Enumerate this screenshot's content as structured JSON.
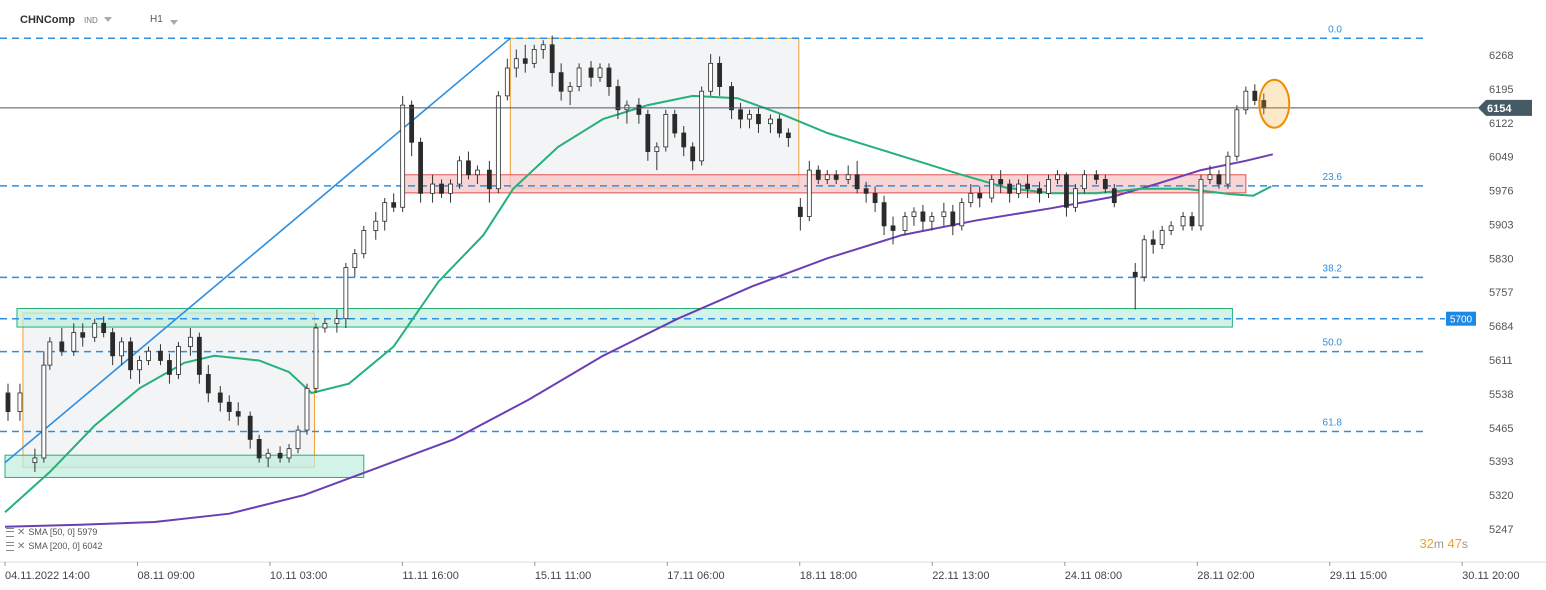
{
  "header": {
    "symbol": "CHNComp",
    "type_badge": "IND",
    "timeframe": "H1"
  },
  "legend": [
    {
      "label": "SMA [50, 0] 5979",
      "color": "#26b07a"
    },
    {
      "label": "SMA [200, 0] 6042",
      "color": "#6a3fb5"
    }
  ],
  "timer": {
    "minutes": "32",
    "m": "m",
    "seconds": "47",
    "s": "s"
  },
  "chart_data": {
    "type": "candlestick",
    "title": "",
    "ylim": [
      5210,
      6340
    ],
    "y_ticks": [
      6268,
      6195,
      6122,
      6049,
      5976,
      5903,
      5830,
      5757,
      5684,
      5611,
      5538,
      5465,
      5393,
      5320,
      5247
    ],
    "x_ticks": [
      {
        "label": "04.11.2022 14:00",
        "t": 0
      },
      {
        "label": "08.11 09:00",
        "t": 0.0886
      },
      {
        "label": "10.11 03:00",
        "t": 0.1772
      },
      {
        "label": "11.11 16:00",
        "t": 0.2658
      },
      {
        "label": "15.11 11:00",
        "t": 0.3544
      },
      {
        "label": "17.11 06:00",
        "t": 0.443
      },
      {
        "label": "18.11 18:00",
        "t": 0.5316
      },
      {
        "label": "22.11 13:00",
        "t": 0.6202
      },
      {
        "label": "24.11 08:00",
        "t": 0.7089
      },
      {
        "label": "28.11 02:00",
        "t": 0.7975
      },
      {
        "label": "29.11 15:00",
        "t": 0.8861
      },
      {
        "label": "30.11 20:00",
        "t": 0.9747
      }
    ],
    "current_price": 6154,
    "fib_levels": [
      {
        "label": "0.0",
        "price": 6304
      },
      {
        "label": "23.6",
        "price": 5986
      },
      {
        "label": "38.2",
        "price": 5789
      },
      {
        "label": "50.0",
        "price": 5629
      },
      {
        "label": "61.8",
        "price": 5457
      }
    ],
    "horizontal_level": {
      "label": "5700",
      "price": 5700
    },
    "zones": [
      {
        "name": "support-zone-low",
        "t0": 0.0,
        "t1": 0.24,
        "p0": 5358,
        "p1": 5406,
        "color": "#26b07a"
      },
      {
        "name": "support-zone-5700",
        "t0": 0.008,
        "t1": 0.821,
        "p0": 5682,
        "p1": 5722,
        "color": "#26b07a"
      },
      {
        "name": "resistance-zone",
        "t0": 0.265,
        "t1": 0.83,
        "p0": 5971,
        "p1": 6010,
        "color": "#e05050"
      }
    ],
    "consolidation_boxes": [
      {
        "name": "consolidation-box-1",
        "t0": 0.012,
        "t1": 0.207,
        "p0": 5380,
        "p1": 5712
      },
      {
        "name": "consolidation-box-2",
        "t0": 0.338,
        "t1": 0.531,
        "p0": 5981,
        "p1": 6304
      }
    ],
    "trendline": {
      "t0": 0.0,
      "p0": 5390,
      "t1": 0.338,
      "p1": 6304
    },
    "highlight_circle": {
      "t": 0.849,
      "p": 6163
    },
    "sma50": [
      [
        0.0,
        5283
      ],
      [
        0.03,
        5370
      ],
      [
        0.06,
        5470
      ],
      [
        0.09,
        5550
      ],
      [
        0.12,
        5605
      ],
      [
        0.14,
        5620
      ],
      [
        0.17,
        5610
      ],
      [
        0.19,
        5585
      ],
      [
        0.205,
        5540
      ],
      [
        0.23,
        5560
      ],
      [
        0.26,
        5640
      ],
      [
        0.29,
        5780
      ],
      [
        0.32,
        5880
      ],
      [
        0.34,
        5980
      ],
      [
        0.37,
        6070
      ],
      [
        0.4,
        6130
      ],
      [
        0.43,
        6160
      ],
      [
        0.46,
        6180
      ],
      [
        0.49,
        6175
      ],
      [
        0.52,
        6140
      ],
      [
        0.55,
        6100
      ],
      [
        0.58,
        6070
      ],
      [
        0.61,
        6040
      ],
      [
        0.64,
        6010
      ],
      [
        0.67,
        5982
      ],
      [
        0.7,
        5970
      ],
      [
        0.73,
        5970
      ],
      [
        0.76,
        5980
      ],
      [
        0.79,
        5980
      ],
      [
        0.82,
        5968
      ],
      [
        0.835,
        5965
      ],
      [
        0.847,
        5985
      ]
    ],
    "sma200": [
      [
        0.0,
        5252
      ],
      [
        0.05,
        5256
      ],
      [
        0.1,
        5262
      ],
      [
        0.15,
        5280
      ],
      [
        0.2,
        5320
      ],
      [
        0.25,
        5380
      ],
      [
        0.3,
        5440
      ],
      [
        0.35,
        5525
      ],
      [
        0.4,
        5620
      ],
      [
        0.45,
        5700
      ],
      [
        0.5,
        5770
      ],
      [
        0.55,
        5830
      ],
      [
        0.6,
        5880
      ],
      [
        0.65,
        5912
      ],
      [
        0.7,
        5938
      ],
      [
        0.74,
        5962
      ],
      [
        0.77,
        5990
      ],
      [
        0.8,
        6020
      ],
      [
        0.83,
        6040
      ],
      [
        0.848,
        6054
      ]
    ],
    "candles": [
      {
        "t": 0.002,
        "o": 5540,
        "h": 5560,
        "l": 5480,
        "c": 5500
      },
      {
        "t": 0.01,
        "o": 5500,
        "h": 5560,
        "l": 5480,
        "c": 5540
      },
      {
        "t": 0.02,
        "o": 5390,
        "h": 5420,
        "l": 5370,
        "c": 5400
      },
      {
        "t": 0.026,
        "o": 5400,
        "h": 5630,
        "l": 5390,
        "c": 5600
      },
      {
        "t": 0.03,
        "o": 5600,
        "h": 5660,
        "l": 5590,
        "c": 5650
      },
      {
        "t": 0.038,
        "o": 5650,
        "h": 5680,
        "l": 5620,
        "c": 5630
      },
      {
        "t": 0.046,
        "o": 5630,
        "h": 5690,
        "l": 5620,
        "c": 5670
      },
      {
        "t": 0.052,
        "o": 5670,
        "h": 5690,
        "l": 5640,
        "c": 5660
      },
      {
        "t": 0.06,
        "o": 5660,
        "h": 5700,
        "l": 5650,
        "c": 5690
      },
      {
        "t": 0.066,
        "o": 5690,
        "h": 5705,
        "l": 5660,
        "c": 5670
      },
      {
        "t": 0.072,
        "o": 5670,
        "h": 5680,
        "l": 5600,
        "c": 5620
      },
      {
        "t": 0.078,
        "o": 5620,
        "h": 5660,
        "l": 5600,
        "c": 5650
      },
      {
        "t": 0.084,
        "o": 5650,
        "h": 5660,
        "l": 5570,
        "c": 5590
      },
      {
        "t": 0.09,
        "o": 5590,
        "h": 5620,
        "l": 5560,
        "c": 5610
      },
      {
        "t": 0.096,
        "o": 5610,
        "h": 5640,
        "l": 5600,
        "c": 5630
      },
      {
        "t": 0.104,
        "o": 5630,
        "h": 5645,
        "l": 5600,
        "c": 5610
      },
      {
        "t": 0.11,
        "o": 5610,
        "h": 5625,
        "l": 5560,
        "c": 5580
      },
      {
        "t": 0.116,
        "o": 5580,
        "h": 5650,
        "l": 5570,
        "c": 5640
      },
      {
        "t": 0.124,
        "o": 5640,
        "h": 5680,
        "l": 5620,
        "c": 5660
      },
      {
        "t": 0.13,
        "o": 5660,
        "h": 5670,
        "l": 5560,
        "c": 5580
      },
      {
        "t": 0.136,
        "o": 5580,
        "h": 5600,
        "l": 5520,
        "c": 5540
      },
      {
        "t": 0.144,
        "o": 5540,
        "h": 5555,
        "l": 5500,
        "c": 5520
      },
      {
        "t": 0.15,
        "o": 5520,
        "h": 5535,
        "l": 5480,
        "c": 5500
      },
      {
        "t": 0.156,
        "o": 5500,
        "h": 5520,
        "l": 5470,
        "c": 5490
      },
      {
        "t": 0.164,
        "o": 5490,
        "h": 5500,
        "l": 5420,
        "c": 5440
      },
      {
        "t": 0.17,
        "o": 5440,
        "h": 5450,
        "l": 5390,
        "c": 5400
      },
      {
        "t": 0.176,
        "o": 5400,
        "h": 5420,
        "l": 5380,
        "c": 5410
      },
      {
        "t": 0.184,
        "o": 5410,
        "h": 5425,
        "l": 5390,
        "c": 5400
      },
      {
        "t": 0.19,
        "o": 5400,
        "h": 5430,
        "l": 5390,
        "c": 5420
      },
      {
        "t": 0.196,
        "o": 5420,
        "h": 5470,
        "l": 5410,
        "c": 5460
      },
      {
        "t": 0.202,
        "o": 5460,
        "h": 5560,
        "l": 5450,
        "c": 5550
      },
      {
        "t": 0.208,
        "o": 5550,
        "h": 5690,
        "l": 5540,
        "c": 5680
      },
      {
        "t": 0.214,
        "o": 5680,
        "h": 5700,
        "l": 5670,
        "c": 5690
      },
      {
        "t": 0.222,
        "o": 5690,
        "h": 5720,
        "l": 5670,
        "c": 5700
      },
      {
        "t": 0.228,
        "o": 5700,
        "h": 5820,
        "l": 5680,
        "c": 5810
      },
      {
        "t": 0.234,
        "o": 5810,
        "h": 5850,
        "l": 5790,
        "c": 5840
      },
      {
        "t": 0.24,
        "o": 5840,
        "h": 5900,
        "l": 5830,
        "c": 5890
      },
      {
        "t": 0.248,
        "o": 5890,
        "h": 5930,
        "l": 5870,
        "c": 5910
      },
      {
        "t": 0.254,
        "o": 5910,
        "h": 5960,
        "l": 5890,
        "c": 5950
      },
      {
        "t": 0.26,
        "o": 5950,
        "h": 5970,
        "l": 5930,
        "c": 5940
      },
      {
        "t": 0.266,
        "o": 5940,
        "h": 6180,
        "l": 5930,
        "c": 6160
      },
      {
        "t": 0.272,
        "o": 6160,
        "h": 6170,
        "l": 6050,
        "c": 6080
      },
      {
        "t": 0.278,
        "o": 6080,
        "h": 6090,
        "l": 5950,
        "c": 5970
      },
      {
        "t": 0.286,
        "o": 5970,
        "h": 6010,
        "l": 5950,
        "c": 5990
      },
      {
        "t": 0.292,
        "o": 5990,
        "h": 6000,
        "l": 5960,
        "c": 5970
      },
      {
        "t": 0.298,
        "o": 5970,
        "h": 6000,
        "l": 5950,
        "c": 5990
      },
      {
        "t": 0.304,
        "o": 5990,
        "h": 6050,
        "l": 5980,
        "c": 6040
      },
      {
        "t": 0.31,
        "o": 6040,
        "h": 6060,
        "l": 6000,
        "c": 6010
      },
      {
        "t": 0.316,
        "o": 6010,
        "h": 6030,
        "l": 5990,
        "c": 6020
      },
      {
        "t": 0.324,
        "o": 6020,
        "h": 6040,
        "l": 5950,
        "c": 5980
      },
      {
        "t": 0.33,
        "o": 5980,
        "h": 6190,
        "l": 5970,
        "c": 6180
      },
      {
        "t": 0.336,
        "o": 6180,
        "h": 6260,
        "l": 6170,
        "c": 6240
      },
      {
        "t": 0.342,
        "o": 6240,
        "h": 6280,
        "l": 6220,
        "c": 6260
      },
      {
        "t": 0.348,
        "o": 6260,
        "h": 6290,
        "l": 6230,
        "c": 6250
      },
      {
        "t": 0.354,
        "o": 6250,
        "h": 6290,
        "l": 6240,
        "c": 6280
      },
      {
        "t": 0.36,
        "o": 6280,
        "h": 6300,
        "l": 6260,
        "c": 6290
      },
      {
        "t": 0.366,
        "o": 6290,
        "h": 6310,
        "l": 6200,
        "c": 6230
      },
      {
        "t": 0.372,
        "o": 6230,
        "h": 6250,
        "l": 6170,
        "c": 6190
      },
      {
        "t": 0.378,
        "o": 6190,
        "h": 6210,
        "l": 6160,
        "c": 6200
      },
      {
        "t": 0.384,
        "o": 6200,
        "h": 6250,
        "l": 6190,
        "c": 6240
      },
      {
        "t": 0.392,
        "o": 6240,
        "h": 6255,
        "l": 6200,
        "c": 6220
      },
      {
        "t": 0.398,
        "o": 6220,
        "h": 6250,
        "l": 6210,
        "c": 6240
      },
      {
        "t": 0.404,
        "o": 6240,
        "h": 6250,
        "l": 6180,
        "c": 6200
      },
      {
        "t": 0.41,
        "o": 6200,
        "h": 6215,
        "l": 6130,
        "c": 6150
      },
      {
        "t": 0.416,
        "o": 6150,
        "h": 6170,
        "l": 6120,
        "c": 6160
      },
      {
        "t": 0.424,
        "o": 6160,
        "h": 6175,
        "l": 6120,
        "c": 6140
      },
      {
        "t": 0.43,
        "o": 6140,
        "h": 6150,
        "l": 6040,
        "c": 6060
      },
      {
        "t": 0.436,
        "o": 6060,
        "h": 6080,
        "l": 6020,
        "c": 6070
      },
      {
        "t": 0.442,
        "o": 6070,
        "h": 6150,
        "l": 6060,
        "c": 6140
      },
      {
        "t": 0.448,
        "o": 6140,
        "h": 6150,
        "l": 6090,
        "c": 6100
      },
      {
        "t": 0.454,
        "o": 6100,
        "h": 6115,
        "l": 6050,
        "c": 6070
      },
      {
        "t": 0.46,
        "o": 6070,
        "h": 6080,
        "l": 6020,
        "c": 6040
      },
      {
        "t": 0.466,
        "o": 6040,
        "h": 6200,
        "l": 6030,
        "c": 6190
      },
      {
        "t": 0.472,
        "o": 6190,
        "h": 6270,
        "l": 6180,
        "c": 6250
      },
      {
        "t": 0.478,
        "o": 6250,
        "h": 6265,
        "l": 6180,
        "c": 6200
      },
      {
        "t": 0.486,
        "o": 6200,
        "h": 6210,
        "l": 6130,
        "c": 6150
      },
      {
        "t": 0.492,
        "o": 6150,
        "h": 6165,
        "l": 6110,
        "c": 6130
      },
      {
        "t": 0.498,
        "o": 6130,
        "h": 6150,
        "l": 6110,
        "c": 6140
      },
      {
        "t": 0.504,
        "o": 6140,
        "h": 6155,
        "l": 6100,
        "c": 6120
      },
      {
        "t": 0.512,
        "o": 6120,
        "h": 6140,
        "l": 6100,
        "c": 6130
      },
      {
        "t": 0.518,
        "o": 6130,
        "h": 6140,
        "l": 6090,
        "c": 6100
      },
      {
        "t": 0.524,
        "o": 6100,
        "h": 6110,
        "l": 6070,
        "c": 6090
      },
      {
        "t": 0.532,
        "o": 5940,
        "h": 5960,
        "l": 5890,
        "c": 5920
      },
      {
        "t": 0.538,
        "o": 5920,
        "h": 6040,
        "l": 5910,
        "c": 6020
      },
      {
        "t": 0.544,
        "o": 6020,
        "h": 6030,
        "l": 5990,
        "c": 6000
      },
      {
        "t": 0.55,
        "o": 6000,
        "h": 6020,
        "l": 5990,
        "c": 6010
      },
      {
        "t": 0.556,
        "o": 6010,
        "h": 6020,
        "l": 5990,
        "c": 6000
      },
      {
        "t": 0.564,
        "o": 6000,
        "h": 6030,
        "l": 5990,
        "c": 6010
      },
      {
        "t": 0.57,
        "o": 6010,
        "h": 6040,
        "l": 5970,
        "c": 5980
      },
      {
        "t": 0.576,
        "o": 5980,
        "h": 5995,
        "l": 5950,
        "c": 5970
      },
      {
        "t": 0.582,
        "o": 5970,
        "h": 5985,
        "l": 5930,
        "c": 5950
      },
      {
        "t": 0.588,
        "o": 5950,
        "h": 5965,
        "l": 5880,
        "c": 5900
      },
      {
        "t": 0.594,
        "o": 5900,
        "h": 5920,
        "l": 5860,
        "c": 5890
      },
      {
        "t": 0.602,
        "o": 5890,
        "h": 5930,
        "l": 5880,
        "c": 5920
      },
      {
        "t": 0.608,
        "o": 5920,
        "h": 5940,
        "l": 5900,
        "c": 5930
      },
      {
        "t": 0.614,
        "o": 5930,
        "h": 5945,
        "l": 5890,
        "c": 5910
      },
      {
        "t": 0.62,
        "o": 5910,
        "h": 5930,
        "l": 5890,
        "c": 5920
      },
      {
        "t": 0.628,
        "o": 5920,
        "h": 5950,
        "l": 5900,
        "c": 5930
      },
      {
        "t": 0.634,
        "o": 5930,
        "h": 5945,
        "l": 5880,
        "c": 5900
      },
      {
        "t": 0.64,
        "o": 5900,
        "h": 5960,
        "l": 5890,
        "c": 5950
      },
      {
        "t": 0.646,
        "o": 5950,
        "h": 5990,
        "l": 5940,
        "c": 5970
      },
      {
        "t": 0.652,
        "o": 5970,
        "h": 5985,
        "l": 5940,
        "c": 5960
      },
      {
        "t": 0.66,
        "o": 5960,
        "h": 6010,
        "l": 5950,
        "c": 6000
      },
      {
        "t": 0.666,
        "o": 6000,
        "h": 6020,
        "l": 5970,
        "c": 5990
      },
      {
        "t": 0.672,
        "o": 5990,
        "h": 6000,
        "l": 5950,
        "c": 5970
      },
      {
        "t": 0.678,
        "o": 5970,
        "h": 6000,
        "l": 5960,
        "c": 5990
      },
      {
        "t": 0.684,
        "o": 5990,
        "h": 6010,
        "l": 5960,
        "c": 5980
      },
      {
        "t": 0.692,
        "o": 5980,
        "h": 5995,
        "l": 5950,
        "c": 5970
      },
      {
        "t": 0.698,
        "o": 5970,
        "h": 6010,
        "l": 5960,
        "c": 6000
      },
      {
        "t": 0.704,
        "o": 6000,
        "h": 6020,
        "l": 5990,
        "c": 6010
      },
      {
        "t": 0.71,
        "o": 6010,
        "h": 6015,
        "l": 5920,
        "c": 5940
      },
      {
        "t": 0.716,
        "o": 5940,
        "h": 5990,
        "l": 5930,
        "c": 5980
      },
      {
        "t": 0.722,
        "o": 5980,
        "h": 6020,
        "l": 5970,
        "c": 6010
      },
      {
        "t": 0.73,
        "o": 6010,
        "h": 6020,
        "l": 5990,
        "c": 6000
      },
      {
        "t": 0.736,
        "o": 6000,
        "h": 6010,
        "l": 5970,
        "c": 5980
      },
      {
        "t": 0.742,
        "o": 5980,
        "h": 5990,
        "l": 5940,
        "c": 5950
      },
      {
        "t": 0.756,
        "o": 5800,
        "h": 5820,
        "l": 5720,
        "c": 5790
      },
      {
        "t": 0.762,
        "o": 5790,
        "h": 5880,
        "l": 5780,
        "c": 5870
      },
      {
        "t": 0.768,
        "o": 5870,
        "h": 5890,
        "l": 5840,
        "c": 5860
      },
      {
        "t": 0.774,
        "o": 5860,
        "h": 5900,
        "l": 5850,
        "c": 5890
      },
      {
        "t": 0.78,
        "o": 5890,
        "h": 5910,
        "l": 5880,
        "c": 5900
      },
      {
        "t": 0.788,
        "o": 5900,
        "h": 5930,
        "l": 5890,
        "c": 5920
      },
      {
        "t": 0.794,
        "o": 5920,
        "h": 5930,
        "l": 5890,
        "c": 5900
      },
      {
        "t": 0.8,
        "o": 5900,
        "h": 6010,
        "l": 5890,
        "c": 6000
      },
      {
        "t": 0.806,
        "o": 6000,
        "h": 6030,
        "l": 5990,
        "c": 6010
      },
      {
        "t": 0.812,
        "o": 6010,
        "h": 6020,
        "l": 5980,
        "c": 5990
      },
      {
        "t": 0.818,
        "o": 5990,
        "h": 6060,
        "l": 5980,
        "c": 6050
      },
      {
        "t": 0.824,
        "o": 6050,
        "h": 6160,
        "l": 6040,
        "c": 6150
      },
      {
        "t": 0.83,
        "o": 6150,
        "h": 6200,
        "l": 6140,
        "c": 6190
      },
      {
        "t": 0.836,
        "o": 6190,
        "h": 6205,
        "l": 6160,
        "c": 6170
      },
      {
        "t": 0.842,
        "o": 6170,
        "h": 6185,
        "l": 6140,
        "c": 6154
      }
    ]
  }
}
